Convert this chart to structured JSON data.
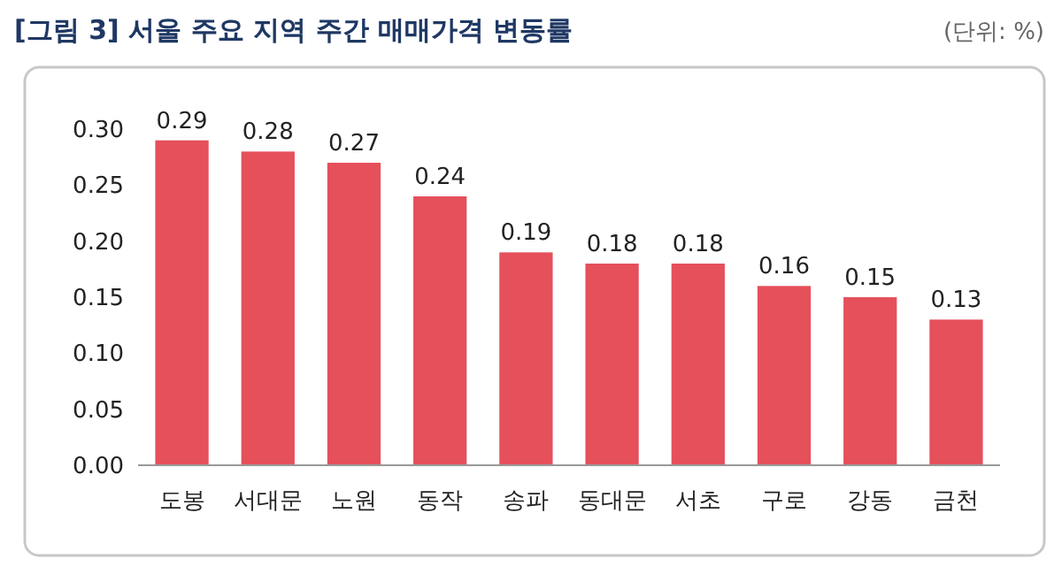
{
  "chart_data": {
    "type": "bar",
    "title": "[그림 3] 서울 주요 지역 주간 매매가격 변동률",
    "annotations": [
      "(단위: %)"
    ],
    "categories": [
      "도봉",
      "서대문",
      "노원",
      "동작",
      "송파",
      "동대문",
      "서초",
      "구로",
      "강동",
      "금천"
    ],
    "values": [
      0.29,
      0.28,
      0.27,
      0.24,
      0.19,
      0.18,
      0.18,
      0.16,
      0.15,
      0.13
    ],
    "color": "#e5505b",
    "ylim": [
      0,
      0.3
    ],
    "yticks": [
      {
        "value": 0,
        "label": "0.00"
      },
      {
        "value": 0.05,
        "label": "0.05"
      },
      {
        "value": 0.1,
        "label": "0.10"
      },
      {
        "value": 0.15,
        "label": "0.15"
      },
      {
        "value": 0.2,
        "label": "0.20"
      },
      {
        "value": 0.25,
        "label": "0.25"
      },
      {
        "value": 0.3,
        "label": "0.30"
      }
    ],
    "grid": false,
    "data_labels": true
  }
}
